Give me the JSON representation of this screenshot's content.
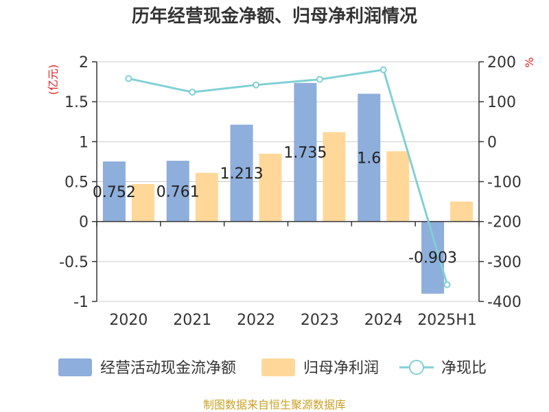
{
  "chart_data": {
    "type": "bar",
    "title": "历年经营现金净额、归母净利润情况",
    "categories": [
      "2020",
      "2021",
      "2022",
      "2023",
      "2024",
      "2025H1"
    ],
    "series": [
      {
        "name": "经营活动现金流净额",
        "kind": "bar",
        "axis": "left",
        "color": "#8eaedb",
        "values": [
          0.752,
          0.761,
          1.213,
          1.735,
          1.6,
          -0.903
        ],
        "labels": [
          "0.752",
          "0.761",
          "1.213",
          "1.735",
          "1.6",
          "-0.903"
        ]
      },
      {
        "name": "归母净利润",
        "kind": "bar",
        "axis": "left",
        "color": "#ffd899",
        "values": [
          0.47,
          0.61,
          0.85,
          1.12,
          0.88,
          0.25
        ]
      },
      {
        "name": "净现比",
        "kind": "line",
        "axis": "right",
        "color": "#80d0d3",
        "values": [
          158,
          124,
          142,
          156,
          180,
          -358
        ]
      }
    ],
    "left_axis": {
      "unit": "(亿元)",
      "ylim": [
        -1,
        2
      ],
      "ticks": [
        2,
        1.5,
        1,
        0.5,
        0,
        -0.5,
        -1
      ],
      "tick_labels": [
        "2",
        "1.5",
        "1",
        "0.5",
        "0",
        "-0.5",
        "-1"
      ]
    },
    "right_axis": {
      "unit": "%",
      "ylim": [
        -400,
        200
      ],
      "ticks": [
        200,
        100,
        0,
        -100,
        -200,
        -300,
        -400
      ],
      "tick_labels": [
        "200",
        "100",
        "0",
        "-100",
        "-200",
        "-300",
        "-400"
      ]
    },
    "grid": true,
    "legend_position": "bottom",
    "source": "制图数据来自恒生聚源数据库",
    "colors": {
      "title": "#333333",
      "unit": "#e02020",
      "source": "#c9a227",
      "axis_text": "#333333",
      "grid": "#cccccc"
    }
  }
}
